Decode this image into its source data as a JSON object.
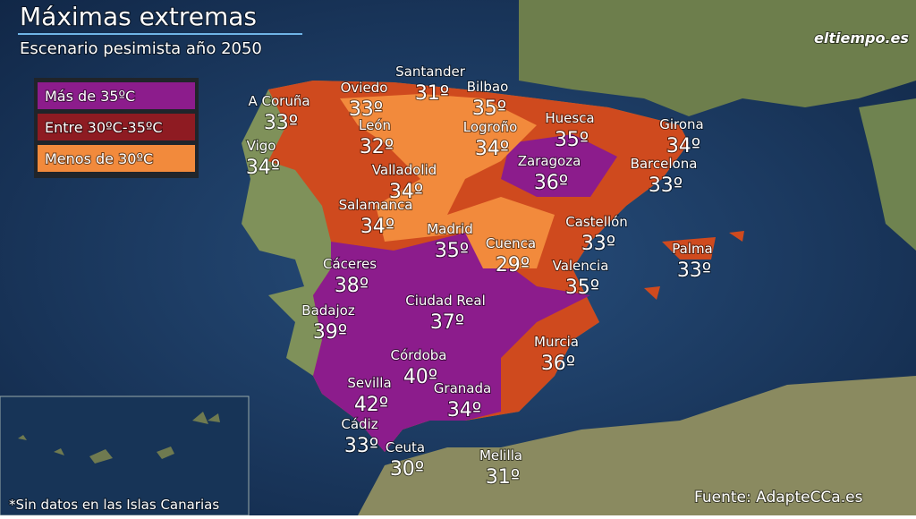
{
  "header": {
    "title": "Máximas extremas",
    "subtitle": "Escenario pesimista año 2050",
    "logo": "eltiempo.es"
  },
  "legend": [
    {
      "label": "Más de 35ºC",
      "color": "#8c1c8c"
    },
    {
      "label": "Entre 30ºC-35ºC",
      "color": "#8e1b22"
    },
    {
      "label": "Menos de 30ºC",
      "color": "#f28a3c"
    }
  ],
  "cities": [
    {
      "name": "A Coruña",
      "temp": "33º"
    },
    {
      "name": "Vigo",
      "temp": "34º"
    },
    {
      "name": "Oviedo",
      "temp": "33º"
    },
    {
      "name": "Santander",
      "temp": "31º"
    },
    {
      "name": "Bilbao",
      "temp": "35º"
    },
    {
      "name": "León",
      "temp": "32º"
    },
    {
      "name": "Logroño",
      "temp": "34º"
    },
    {
      "name": "Huesca",
      "temp": "35º"
    },
    {
      "name": "Girona",
      "temp": "34º"
    },
    {
      "name": "Valladolid",
      "temp": "34º"
    },
    {
      "name": "Zaragoza",
      "temp": "36º"
    },
    {
      "name": "Barcelona",
      "temp": "33º"
    },
    {
      "name": "Salamanca",
      "temp": "34º"
    },
    {
      "name": "Madrid",
      "temp": "35º"
    },
    {
      "name": "Castellón",
      "temp": "33º"
    },
    {
      "name": "Cuenca",
      "temp": "29º"
    },
    {
      "name": "Palma",
      "temp": "33º"
    },
    {
      "name": "Cáceres",
      "temp": "38º"
    },
    {
      "name": "Valencia",
      "temp": "35º"
    },
    {
      "name": "Ciudad Real",
      "temp": "37º"
    },
    {
      "name": "Badajoz",
      "temp": "39º"
    },
    {
      "name": "Murcia",
      "temp": "36º"
    },
    {
      "name": "Córdoba",
      "temp": "40º"
    },
    {
      "name": "Sevilla",
      "temp": "42º"
    },
    {
      "name": "Granada",
      "temp": "34º"
    },
    {
      "name": "Cádiz",
      "temp": "33º"
    },
    {
      "name": "Ceuta",
      "temp": "30º"
    },
    {
      "name": "Melilla",
      "temp": "31º"
    }
  ],
  "footnote": "*Sin datos en las Islas Canarias",
  "source": "Fuente: AdapteCCa.es"
}
